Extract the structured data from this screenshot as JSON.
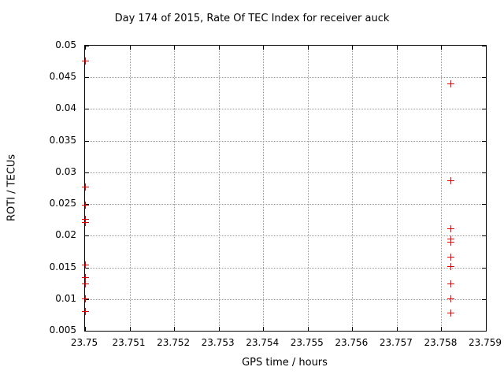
{
  "chart_data": {
    "type": "scatter",
    "title": "Day 174 of 2015, Rate Of TEC Index for receiver auck",
    "xlabel": "GPS time / hours",
    "ylabel": "ROTI / TECUs",
    "xlim": [
      23.75,
      23.759
    ],
    "ylim": [
      0.005,
      0.05
    ],
    "grid": true,
    "legend": "none",
    "marker": "plus",
    "marker_color": "#e00000",
    "xticks": [
      {
        "label": "23.75",
        "value": 23.75
      },
      {
        "label": "23.751",
        "value": 23.751
      },
      {
        "label": "23.752",
        "value": 23.752
      },
      {
        "label": "23.753",
        "value": 23.753
      },
      {
        "label": "23.754",
        "value": 23.754
      },
      {
        "label": "23.755",
        "value": 23.755
      },
      {
        "label": "23.756",
        "value": 23.756
      },
      {
        "label": "23.757",
        "value": 23.757
      },
      {
        "label": "23.758",
        "value": 23.758
      },
      {
        "label": "23.759",
        "value": 23.759
      }
    ],
    "yticks": [
      {
        "label": "0.005",
        "value": 0.005
      },
      {
        "label": "0.01",
        "value": 0.01
      },
      {
        "label": "0.015",
        "value": 0.015
      },
      {
        "label": "0.02",
        "value": 0.02
      },
      {
        "label": "0.025",
        "value": 0.025
      },
      {
        "label": "0.03",
        "value": 0.03
      },
      {
        "label": "0.035",
        "value": 0.035
      },
      {
        "label": "0.04",
        "value": 0.04
      },
      {
        "label": "0.045",
        "value": 0.045
      },
      {
        "label": "0.05",
        "value": 0.05
      }
    ],
    "series": [
      {
        "name": "ROTI",
        "points": [
          [
            23.75,
            0.0477
          ],
          [
            23.75,
            0.0277
          ],
          [
            23.75,
            0.0249
          ],
          [
            23.75,
            0.0226
          ],
          [
            23.75,
            0.0222
          ],
          [
            23.75,
            0.0155
          ],
          [
            23.75,
            0.0135
          ],
          [
            23.75,
            0.0125
          ],
          [
            23.75,
            0.0101
          ],
          [
            23.75,
            0.0081
          ],
          [
            23.7582,
            0.044
          ],
          [
            23.7582,
            0.0288
          ],
          [
            23.7582,
            0.0212
          ],
          [
            23.7582,
            0.0195
          ],
          [
            23.7582,
            0.0191
          ],
          [
            23.7582,
            0.0167
          ],
          [
            23.7582,
            0.0152
          ],
          [
            23.7582,
            0.0125
          ],
          [
            23.7582,
            0.0101
          ],
          [
            23.7582,
            0.0078
          ]
        ]
      }
    ]
  }
}
